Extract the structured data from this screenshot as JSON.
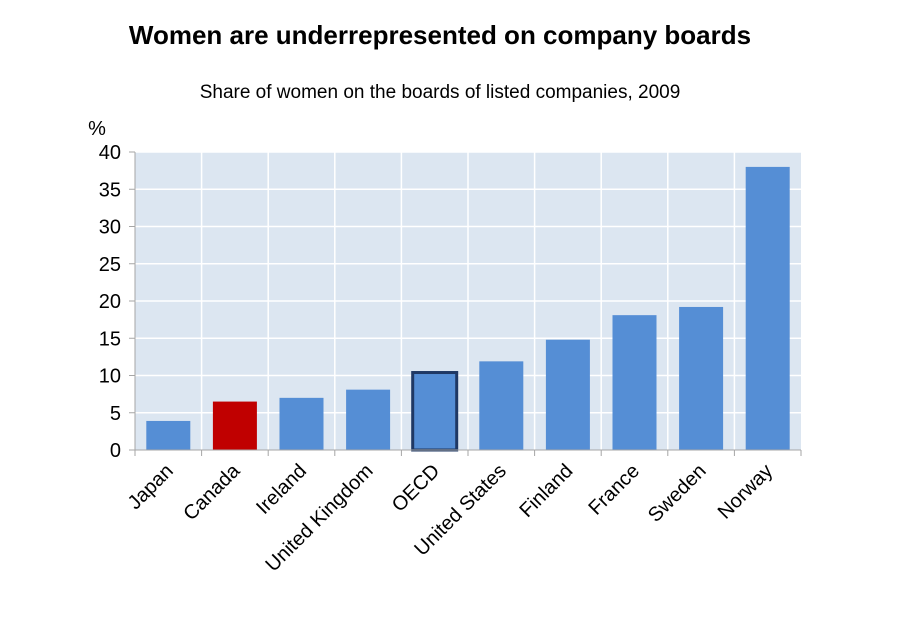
{
  "chart_data": {
    "type": "bar",
    "title": "Women are underrepresented on company boards",
    "subtitle": "Share of women on the boards of listed companies, 2009",
    "ylabel": "%",
    "xlabel": "",
    "ylim": [
      0,
      40
    ],
    "yticks": [
      0,
      5,
      10,
      15,
      20,
      25,
      30,
      35,
      40
    ],
    "grid": true,
    "categories": [
      "Japan",
      "Canada",
      "Ireland",
      "United Kingdom",
      "OECD",
      "United States",
      "Finland",
      "France",
      "Sweden",
      "Norway"
    ],
    "values": [
      3.9,
      6.5,
      7.0,
      8.1,
      10.4,
      11.9,
      14.8,
      18.1,
      19.2,
      38.0
    ],
    "colors": {
      "default": "#558ed5",
      "highlight": "#c00000",
      "oecd_outline": "#1f3864",
      "plot_background": "#dce6f1",
      "grid": "#ffffff"
    },
    "highlight_category": "Canada",
    "outlined_category": "OECD"
  }
}
